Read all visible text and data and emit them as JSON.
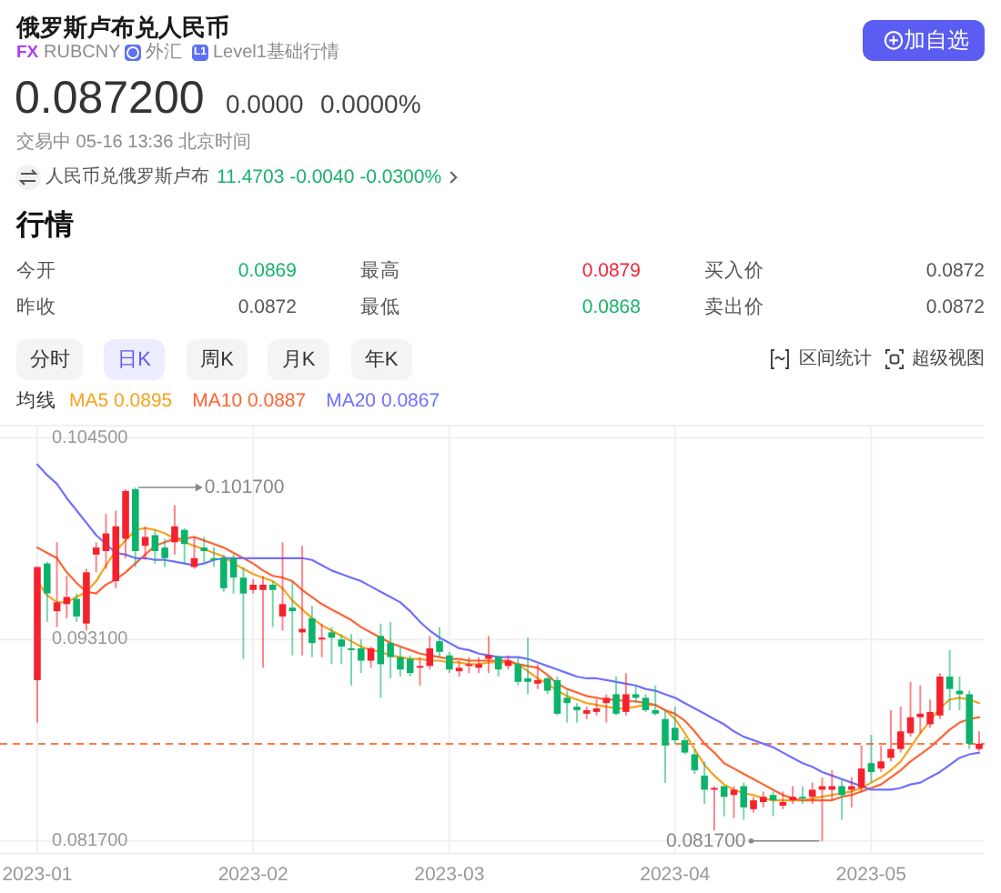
{
  "chart_data": [
    {
      "type": "other",
      "title": "俄罗斯卢布兑人民币",
      "annotations": [
        "FX",
        "RUBCNY",
        "外汇",
        "L1",
        "Level1基础行情",
        "加自选",
        "0.087200",
        "0.0000",
        "0.0000%",
        "交易中 05-16 13:36 北京时间",
        "人民币兑俄罗斯卢布",
        "11.4703 -0.0040 -0.0300%",
        "行情",
        "今开",
        "0.0869",
        "最高",
        "0.0879",
        "买入价",
        "0.0872",
        "昨收",
        "0.0872",
        "最低",
        "0.0868",
        "卖出价",
        "0.0872",
        "分时",
        "日K",
        "周K",
        "月K",
        "年K",
        "区间统计",
        "超级视图"
      ]
    },
    {
      "type": "candlestick",
      "legend_title": "均线",
      "legend": "top left",
      "grid": true,
      "categories": [
        "2023-01",
        null,
        null,
        null,
        null,
        null,
        null,
        null,
        null,
        null,
        null,
        null,
        null,
        null,
        null,
        null,
        null,
        null,
        null,
        null,
        null,
        null,
        "2023-02",
        null,
        null,
        null,
        null,
        null,
        null,
        null,
        null,
        null,
        null,
        null,
        null,
        null,
        null,
        null,
        null,
        null,
        null,
        null,
        "2023-03",
        null,
        null,
        null,
        null,
        null,
        null,
        null,
        null,
        null,
        null,
        null,
        null,
        null,
        null,
        null,
        null,
        null,
        null,
        null,
        null,
        null,
        null,
        "2023-04",
        null,
        null,
        null,
        null,
        null,
        null,
        null,
        null,
        null,
        null,
        null,
        null,
        null,
        null,
        null,
        null,
        null,
        null,
        null,
        "2023-05",
        null,
        null,
        null,
        null,
        null,
        null,
        null,
        null,
        null,
        null,
        null
      ],
      "ohlc": [
        [
          0.0908,
          0.0972,
          0.0884,
          0.0972
        ],
        [
          0.0974,
          0.0975,
          0.0941,
          0.0957
        ],
        [
          0.0947,
          0.0986,
          0.0938,
          0.0952
        ],
        [
          0.0951,
          0.0967,
          0.0943,
          0.0955
        ],
        [
          0.0954,
          0.0957,
          0.0941,
          0.0944
        ],
        [
          0.094,
          0.0971,
          0.0936,
          0.0969
        ],
        [
          0.0979,
          0.0986,
          0.0969,
          0.0983
        ],
        [
          0.0981,
          0.1002,
          0.0971,
          0.0991
        ],
        [
          0.0964,
          0.1004,
          0.096,
          0.0995
        ],
        [
          0.0988,
          0.1016,
          0.0977,
          0.1015
        ],
        [
          0.1016,
          0.1017,
          0.0972,
          0.0981
        ],
        [
          0.0984,
          0.0995,
          0.0976,
          0.0989
        ],
        [
          0.099,
          0.0993,
          0.0974,
          0.0981
        ],
        [
          0.0983,
          0.0988,
          0.0972,
          0.0977
        ],
        [
          0.0986,
          0.1007,
          0.0979,
          0.0995
        ],
        [
          0.0993,
          0.0994,
          0.0974,
          0.0985
        ],
        [
          0.0972,
          0.0989,
          0.0971,
          0.0977
        ],
        [
          0.0983,
          0.0989,
          0.0974,
          0.0981
        ],
        [
          0.0977,
          0.0983,
          0.0972,
          0.0976
        ],
        [
          0.0977,
          0.0979,
          0.0958,
          0.096
        ],
        [
          0.0977,
          0.0979,
          0.0957,
          0.0966
        ],
        [
          0.0966,
          0.0972,
          0.092,
          0.0957
        ],
        [
          0.0959,
          0.0965,
          0.0957,
          0.0962
        ],
        [
          0.0959,
          0.0967,
          0.0915,
          0.0962
        ],
        [
          0.0962,
          0.0964,
          0.0938,
          0.0959
        ],
        [
          0.0944,
          0.0986,
          0.0936,
          0.0951
        ],
        [
          0.0949,
          0.0964,
          0.0922,
          0.0947
        ],
        [
          0.0935,
          0.0984,
          0.0922,
          0.0937
        ],
        [
          0.0943,
          0.095,
          0.0921,
          0.0929
        ],
        [
          0.0931,
          0.094,
          0.0921,
          0.0932
        ],
        [
          0.0935,
          0.0938,
          0.0917,
          0.0932
        ],
        [
          0.0931,
          0.0934,
          0.0917,
          0.0927
        ],
        [
          0.0926,
          0.0934,
          0.0905,
          0.0925
        ],
        [
          0.0926,
          0.0931,
          0.0912,
          0.0919
        ],
        [
          0.0919,
          0.0927,
          0.0915,
          0.0926
        ],
        [
          0.0933,
          0.094,
          0.0898,
          0.0917
        ],
        [
          0.0929,
          0.0941,
          0.0909,
          0.0921
        ],
        [
          0.0921,
          0.0927,
          0.091,
          0.0914
        ],
        [
          0.092,
          0.0922,
          0.091,
          0.0912
        ],
        [
          0.0915,
          0.0921,
          0.0905,
          0.0916
        ],
        [
          0.0916,
          0.0933,
          0.0914,
          0.0926
        ],
        [
          0.093,
          0.0938,
          0.0921,
          0.0924
        ],
        [
          0.0922,
          0.0924,
          0.0912,
          0.0914
        ],
        [
          0.0913,
          0.0919,
          0.091,
          0.0915
        ],
        [
          0.0916,
          0.0921,
          0.0912,
          0.0917
        ],
        [
          0.0915,
          0.0921,
          0.0912,
          0.0917
        ],
        [
          0.092,
          0.0933,
          0.0912,
          0.0922
        ],
        [
          0.0921,
          0.0922,
          0.091,
          0.0914
        ],
        [
          0.0916,
          0.0922,
          0.0914,
          0.0919
        ],
        [
          0.0917,
          0.0921,
          0.0905,
          0.0907
        ],
        [
          0.0909,
          0.0932,
          0.09,
          0.0907
        ],
        [
          0.0906,
          0.0917,
          0.0903,
          0.0908
        ],
        [
          0.0909,
          0.091,
          0.09,
          0.0902
        ],
        [
          0.0908,
          0.091,
          0.0888,
          0.0889
        ],
        [
          0.0898,
          0.0902,
          0.0884,
          0.0895
        ],
        [
          0.0893,
          0.0895,
          0.0884,
          0.0891
        ],
        [
          0.0889,
          0.0893,
          0.0886,
          0.0891
        ],
        [
          0.089,
          0.0897,
          0.0888,
          0.0892
        ],
        [
          0.0895,
          0.09,
          0.0884,
          0.0898
        ],
        [
          0.09,
          0.091,
          0.0888,
          0.0889
        ],
        [
          0.089,
          0.0912,
          0.0888,
          0.09
        ],
        [
          0.09,
          0.0905,
          0.0895,
          0.0898
        ],
        [
          0.0898,
          0.09,
          0.089,
          0.0891
        ],
        [
          0.0891,
          0.0905,
          0.0888,
          0.0889
        ],
        [
          0.0886,
          0.0891,
          0.085,
          0.0871
        ],
        [
          0.0881,
          0.0893,
          0.0872,
          0.0874
        ],
        [
          0.0874,
          0.0876,
          0.0866,
          0.0867
        ],
        [
          0.0866,
          0.0869,
          0.0855,
          0.0857
        ],
        [
          0.0854,
          0.0862,
          0.0838,
          0.0846
        ],
        [
          0.0846,
          0.0848,
          0.0823,
          0.0847
        ],
        [
          0.0848,
          0.0848,
          0.0831,
          0.0842
        ],
        [
          0.0843,
          0.0848,
          0.083,
          0.0846
        ],
        [
          0.0848,
          0.085,
          0.0829,
          0.0836
        ],
        [
          0.0835,
          0.0842,
          0.0833,
          0.084
        ],
        [
          0.0839,
          0.0845,
          0.0836,
          0.0842
        ],
        [
          0.0843,
          0.0845,
          0.0831,
          0.084
        ],
        [
          0.0837,
          0.0845,
          0.0835,
          0.0839
        ],
        [
          0.084,
          0.0848,
          0.0838,
          0.0842
        ],
        [
          0.0842,
          0.0848,
          0.0838,
          0.0841
        ],
        [
          0.0842,
          0.085,
          0.0838,
          0.0846
        ],
        [
          0.0846,
          0.0853,
          0.0817,
          0.0848
        ],
        [
          0.0846,
          0.0857,
          0.084,
          0.0848
        ],
        [
          0.0848,
          0.0852,
          0.0829,
          0.0843
        ],
        [
          0.0846,
          0.0853,
          0.0836,
          0.0848
        ],
        [
          0.0847,
          0.0871,
          0.0845,
          0.0858
        ],
        [
          0.0861,
          0.0877,
          0.085,
          0.0856
        ],
        [
          0.0858,
          0.0871,
          0.0856,
          0.0862
        ],
        [
          0.0864,
          0.0891,
          0.0862,
          0.0869
        ],
        [
          0.0869,
          0.0893,
          0.0867,
          0.0879
        ],
        [
          0.0878,
          0.0907,
          0.0876,
          0.0887
        ],
        [
          0.0887,
          0.0905,
          0.0878,
          0.0889
        ],
        [
          0.0883,
          0.0897,
          0.0881,
          0.089
        ],
        [
          0.0888,
          0.0912,
          0.0886,
          0.091
        ],
        [
          0.091,
          0.0925,
          0.0891,
          0.0903
        ],
        [
          0.0902,
          0.091,
          0.0891,
          0.09
        ],
        [
          0.09,
          0.0902,
          0.0869,
          0.0872
        ],
        [
          0.0869,
          0.0879,
          0.0868,
          0.0872
        ]
      ],
      "series": [
        {
          "name": "MA5 0.0895",
          "type": "line",
          "color": "#f7a31c",
          "values": [
            0.0964,
            0.0956,
            0.0952,
            0.0952,
            0.0955,
            0.0958,
            0.0964,
            0.0973,
            0.0981,
            0.0987,
            0.0993,
            0.0994,
            0.0993,
            0.0991,
            0.0988,
            0.0986,
            0.0984,
            0.0982,
            0.098,
            0.0978,
            0.0974,
            0.0971,
            0.0968,
            0.0966,
            0.0964,
            0.096,
            0.0953,
            0.0948,
            0.0943,
            0.0939,
            0.0936,
            0.0933,
            0.093,
            0.0927,
            0.0925,
            0.0924,
            0.0922,
            0.0921,
            0.092,
            0.092,
            0.0919,
            0.0919,
            0.0918,
            0.0918,
            0.0917,
            0.0917,
            0.0918,
            0.0918,
            0.0918,
            0.0917,
            0.0913,
            0.0909,
            0.0906,
            0.0902,
            0.0899,
            0.0897,
            0.0895,
            0.0894,
            0.0893,
            0.0892,
            0.0892,
            0.0893,
            0.0894,
            0.0894,
            0.0891,
            0.0886,
            0.0878,
            0.0869,
            0.086,
            0.0854,
            0.0849,
            0.0846,
            0.0844,
            0.0843,
            0.0841,
            0.084,
            0.084,
            0.084,
            0.084,
            0.0841,
            0.0842,
            0.0843,
            0.0844,
            0.0845,
            0.0847,
            0.085,
            0.0853,
            0.0857,
            0.0862,
            0.087,
            0.0878,
            0.0885,
            0.0892,
            0.0897,
            0.0898,
            0.0897,
            0.0895
          ]
        },
        {
          "name": "MA10 0.0887",
          "type": "line",
          "color": "#ff6433",
          "values": [
            0.0983,
            0.098,
            0.0977,
            0.0969,
            0.0963,
            0.0958,
            0.0957,
            0.0962,
            0.0965,
            0.0969,
            0.0974,
            0.0979,
            0.0984,
            0.0986,
            0.0988,
            0.0988,
            0.0989,
            0.0987,
            0.0985,
            0.0983,
            0.098,
            0.0977,
            0.0974,
            0.097,
            0.0967,
            0.0966,
            0.0964,
            0.0959,
            0.0955,
            0.0951,
            0.0948,
            0.0945,
            0.0942,
            0.0938,
            0.0935,
            0.0932,
            0.0929,
            0.0927,
            0.0925,
            0.0923,
            0.0922,
            0.0921,
            0.092,
            0.092,
            0.0919,
            0.0919,
            0.0919,
            0.0919,
            0.0919,
            0.0917,
            0.0916,
            0.0915,
            0.0911,
            0.0906,
            0.0903,
            0.0901,
            0.0899,
            0.0898,
            0.0897,
            0.0897,
            0.0896,
            0.0896,
            0.0895,
            0.0894,
            0.0891,
            0.0889,
            0.0885,
            0.0879,
            0.0872,
            0.0867,
            0.0861,
            0.0858,
            0.0855,
            0.0852,
            0.0849,
            0.0846,
            0.0843,
            0.0841,
            0.084,
            0.084,
            0.084,
            0.084,
            0.0842,
            0.0843,
            0.0845,
            0.0847,
            0.0849,
            0.0853,
            0.0857,
            0.0862,
            0.0866,
            0.087,
            0.0875,
            0.088,
            0.0884,
            0.0886,
            0.0887
          ]
        },
        {
          "name": "MA20 0.0867",
          "type": "line",
          "color": "#7070ff",
          "values": [
            0.103,
            0.1024,
            0.1019,
            0.1011,
            0.1004,
            0.0997,
            0.099,
            0.0985,
            0.098,
            0.0979,
            0.0977,
            0.0977,
            0.0976,
            0.0976,
            0.0975,
            0.0974,
            0.0973,
            0.0974,
            0.0976,
            0.0977,
            0.0977,
            0.0977,
            0.0977,
            0.0977,
            0.0977,
            0.0977,
            0.0977,
            0.0977,
            0.0976,
            0.0973,
            0.097,
            0.0968,
            0.0966,
            0.0964,
            0.0961,
            0.0958,
            0.0955,
            0.0952,
            0.0947,
            0.0941,
            0.0936,
            0.0932,
            0.0929,
            0.0926,
            0.0925,
            0.0923,
            0.0922,
            0.0921,
            0.0921,
            0.0921,
            0.092,
            0.0918,
            0.0916,
            0.0914,
            0.0912,
            0.091,
            0.0909,
            0.0909,
            0.0908,
            0.0907,
            0.0906,
            0.0905,
            0.0903,
            0.0902,
            0.09,
            0.0898,
            0.0895,
            0.0892,
            0.0889,
            0.0886,
            0.0883,
            0.0879,
            0.0876,
            0.0874,
            0.0872,
            0.087,
            0.0867,
            0.0864,
            0.0861,
            0.0859,
            0.0856,
            0.0854,
            0.0852,
            0.085,
            0.0848,
            0.0846,
            0.0846,
            0.0846,
            0.0847,
            0.0849,
            0.085,
            0.0853,
            0.0856,
            0.086,
            0.0864,
            0.0866,
            0.0867
          ]
        }
      ],
      "ylim": [
        0.081,
        0.1052
      ],
      "yticks": [
        {
          "value": 0.0817,
          "label": "0.081700"
        },
        {
          "value": 0.0931,
          "label": "0.093100"
        },
        {
          "value": 0.1045,
          "label": "0.104500"
        }
      ],
      "ref_lines": [
        {
          "axis": "y",
          "value": 0.0872,
          "color": "#ff7a45",
          "line_style": "dashed"
        }
      ],
      "annotations": [
        "0.101700",
        "0.081700"
      ]
    }
  ]
}
